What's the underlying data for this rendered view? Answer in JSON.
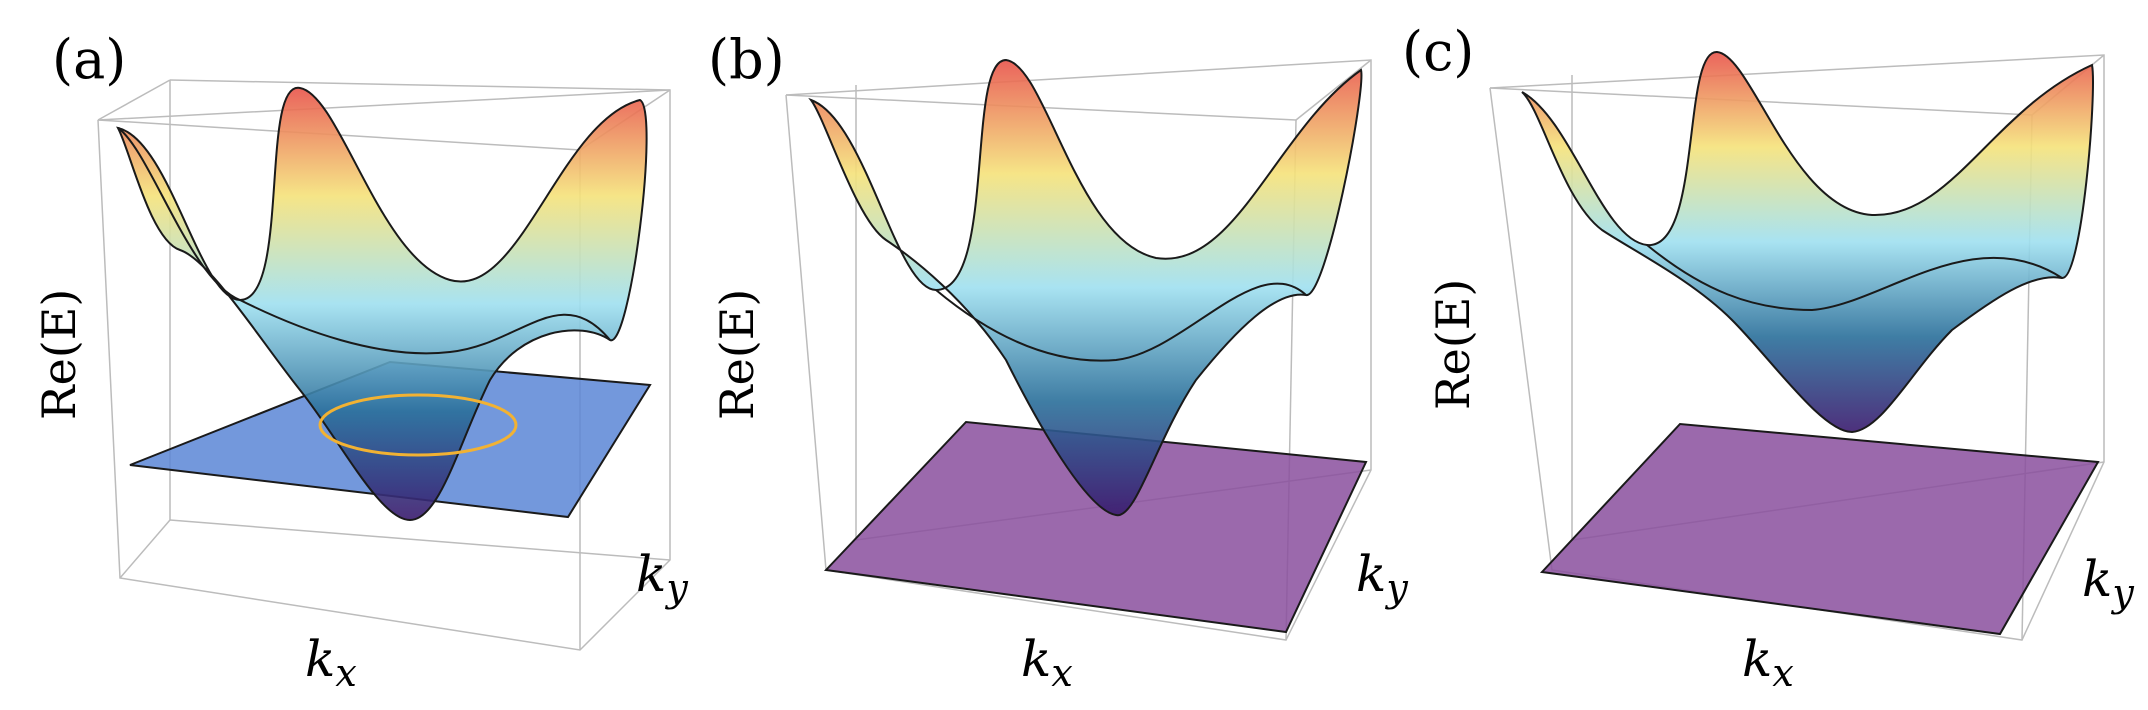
{
  "panels": [
    {
      "label": "(a)",
      "z_label": "Re(E)",
      "x_label": "k",
      "x_sub": "x",
      "y_label": "k",
      "y_sub": "y",
      "plane_color": "#5b86d6",
      "ring": true
    },
    {
      "label": "(b)",
      "z_label": "Re(E)",
      "x_label": "k",
      "x_sub": "x",
      "y_label": "k",
      "y_sub": "y",
      "plane_color": "#8a4f9e",
      "ring": false
    },
    {
      "label": "(c)",
      "z_label": "Re(E)",
      "x_label": "k",
      "x_sub": "x",
      "y_label": "k",
      "y_sub": "y",
      "plane_color": "#8a4f9e",
      "ring": false
    }
  ],
  "colors": {
    "surface_top": "#e8534a",
    "surface_mid_high": "#f5e27a",
    "surface_mid": "#9fe0f0",
    "surface_low": "#2a7f9c",
    "surface_bottom": "#3a1a6e",
    "ring": "#f2b233"
  }
}
